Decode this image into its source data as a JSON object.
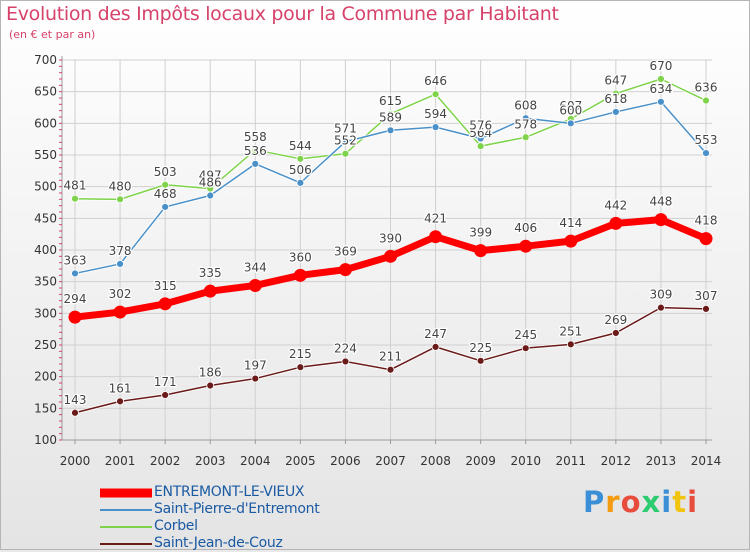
{
  "title": "Evolution des Impôts locaux pour la Commune par Habitant",
  "subtitle": "(en € et par an)",
  "logo": {
    "text": "Proxiti",
    "colors": [
      "#3a8fd6",
      "#f39c12",
      "#e74c3c",
      "#2ecc71",
      "#3a8fd6",
      "#f1c40f",
      "#e74c3c"
    ]
  },
  "chart_data": {
    "type": "line",
    "x": [
      "2000",
      "2001",
      "2002",
      "2003",
      "2004",
      "2005",
      "2006",
      "2007",
      "2008",
      "2009",
      "2010",
      "2011",
      "2012",
      "2013",
      "2014"
    ],
    "ylim": [
      100,
      700
    ],
    "yticks": [
      100,
      150,
      200,
      250,
      300,
      350,
      400,
      450,
      500,
      550,
      600,
      650,
      700
    ],
    "grid": true,
    "legend_position": "bottom-left",
    "series": [
      {
        "name": "ENTREMONT-LE-VIEUX",
        "color": "#ff0000",
        "values": [
          294,
          302,
          315,
          335,
          344,
          360,
          369,
          390,
          421,
          399,
          406,
          414,
          442,
          448,
          418
        ]
      },
      {
        "name": "Saint-Pierre-d'Entremont",
        "color": "#4a90c8",
        "values": [
          363,
          378,
          468,
          486,
          536,
          506,
          571,
          589,
          594,
          576,
          608,
          600,
          618,
          634,
          553
        ]
      },
      {
        "name": "Corbel",
        "color": "#7ed34a",
        "values": [
          481,
          480,
          503,
          497,
          558,
          544,
          552,
          615,
          646,
          564,
          578,
          607,
          647,
          670,
          636
        ]
      },
      {
        "name": "Saint-Jean-de-Couz",
        "color": "#6b1a1a",
        "values": [
          143,
          161,
          171,
          186,
          197,
          215,
          224,
          211,
          247,
          225,
          245,
          251,
          269,
          309,
          307
        ]
      }
    ]
  }
}
